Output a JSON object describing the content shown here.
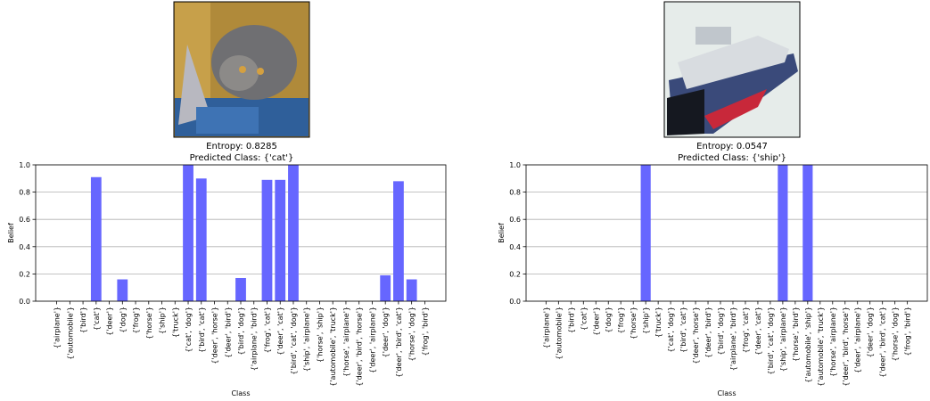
{
  "chart_data": [
    {
      "type": "bar",
      "title": "Entropy: 0.8285",
      "subtitle": "Predicted Class: {'cat'}",
      "xlabel": "Class",
      "ylabel": "Belief",
      "color": "#6666ff",
      "grid": true,
      "categories": [
        "{'airplane'}",
        "{'automobile'}",
        "{'bird'}",
        "{'cat'}",
        "{'deer'}",
        "{'dog'}",
        "{'frog'}",
        "{'horse'}",
        "{'ship'}",
        "{'truck'}",
        "{'cat', 'dog'}",
        "{'bird', 'cat'}",
        "{'deer', 'horse'}",
        "{'deer', 'bird'}",
        "{'bird', 'dog'}",
        "{'airplane', 'bird'}",
        "{'frog', 'cat'}",
        "{'deer', 'cat'}",
        "{'bird', 'cat', 'dog'}",
        "{'ship', 'airplane'}",
        "{'horse', 'ship'}",
        "{'automobile', 'truck'}",
        "{'horse', 'airplane'}",
        "{'deer', 'bird', 'horse'}",
        "{'deer', 'airplane'}",
        "{'deer', 'dog'}",
        "{'deer', 'bird', 'cat'}",
        "{'horse', 'dog'}",
        "{'frog', 'bird'}"
      ],
      "values": [
        0,
        0,
        0,
        0.91,
        0,
        0.16,
        0,
        0,
        0,
        0,
        1.0,
        0.9,
        0,
        0,
        0.17,
        0,
        0.89,
        0.89,
        1.0,
        0,
        0,
        0,
        0,
        0,
        0,
        0.19,
        0.88,
        0.16,
        0
      ],
      "ylim": [
        0,
        1
      ],
      "yticks": [
        {
          "value": 0,
          "label": "0.0"
        },
        {
          "value": 0.2,
          "label": "0.2"
        },
        {
          "value": 0.4,
          "label": "0.4"
        },
        {
          "value": 0.6,
          "label": "0.6"
        },
        {
          "value": 0.8,
          "label": "0.8"
        },
        {
          "value": 1,
          "label": "1.0"
        }
      ]
    },
    {
      "type": "bar",
      "title": "Entropy: 0.0547",
      "subtitle": "Predicted Class: {'ship'}",
      "xlabel": "Class",
      "ylabel": "Belief",
      "color": "#6666ff",
      "grid": true,
      "categories": [
        "{'airplane'}",
        "{'automobile'}",
        "{'bird'}",
        "{'cat'}",
        "{'deer'}",
        "{'dog'}",
        "{'frog'}",
        "{'horse'}",
        "{'ship'}",
        "{'truck'}",
        "{'cat', 'dog'}",
        "{'bird', 'cat'}",
        "{'deer', 'horse'}",
        "{'deer', 'bird'}",
        "{'bird', 'dog'}",
        "{'airplane', 'bird'}",
        "{'frog', 'cat'}",
        "{'deer', 'cat'}",
        "{'bird', 'cat', 'dog'}",
        "{'ship', 'airplane'}",
        "{'horse', 'bird'}",
        "{'automobile', 'ship'}",
        "{'automobile', 'truck'}",
        "{'horse', 'airplane'}",
        "{'deer', 'bird', 'horse'}",
        "{'deer', 'airplane'}",
        "{'deer', 'dog'}",
        "{'deer', 'bird', 'cat'}",
        "{'horse', 'dog'}",
        "{'frog', 'bird'}"
      ],
      "values": [
        0,
        0,
        0,
        0,
        0,
        0,
        0,
        0,
        1.0,
        0,
        0,
        0,
        0,
        0,
        0,
        0,
        0,
        0,
        0,
        1.0,
        0,
        1.0,
        0,
        0,
        0,
        0,
        0,
        0,
        0,
        0
      ],
      "ylim": [
        0,
        1
      ],
      "yticks": [
        {
          "value": 0,
          "label": "0.0"
        },
        {
          "value": 0.2,
          "label": "0.2"
        },
        {
          "value": 0.4,
          "label": "0.4"
        },
        {
          "value": 0.6,
          "label": "0.6"
        },
        {
          "value": 0.8,
          "label": "0.8"
        },
        {
          "value": 1,
          "label": "1.0"
        }
      ]
    }
  ]
}
